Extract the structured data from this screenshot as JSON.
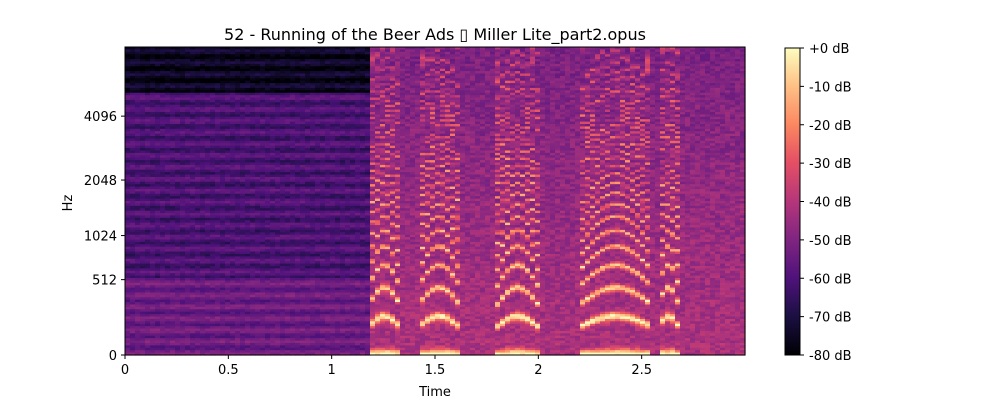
{
  "chart_data": {
    "type": "heatmap",
    "title": "52 - Running of the Beer Ads ▯ Miller Lite_part2.opus",
    "xlabel": "Time",
    "ylabel": "Hz",
    "x_range": [
      0,
      3.0
    ],
    "x_ticks": [
      {
        "value": 0,
        "label": "0"
      },
      {
        "value": 0.5,
        "label": "0.5"
      },
      {
        "value": 1,
        "label": "1"
      },
      {
        "value": 1.5,
        "label": "1.5"
      },
      {
        "value": 2,
        "label": "2"
      },
      {
        "value": 2.5,
        "label": "2.5"
      }
    ],
    "y_scale": "log2 (mel-like)",
    "y_ticks": [
      {
        "value": 0,
        "label": "0"
      },
      {
        "value": 512,
        "label": "512"
      },
      {
        "value": 1024,
        "label": "1024"
      },
      {
        "value": 2048,
        "label": "2048"
      },
      {
        "value": 4096,
        "label": "4096"
      }
    ],
    "colorbar": {
      "colormap": "magma",
      "range_db": [
        -80,
        0
      ],
      "ticks": [
        {
          "value": 0,
          "label": "+0 dB"
        },
        {
          "value": -10,
          "label": "-10 dB"
        },
        {
          "value": -20,
          "label": "-20 dB"
        },
        {
          "value": -30,
          "label": "-30 dB"
        },
        {
          "value": -40,
          "label": "-40 dB"
        },
        {
          "value": -50,
          "label": "-50 dB"
        },
        {
          "value": -60,
          "label": "-60 dB"
        },
        {
          "value": -70,
          "label": "-70 dB"
        },
        {
          "value": -80,
          "label": "-80 dB"
        }
      ]
    },
    "speech_onset_time": 1.18,
    "speech_segments": [
      {
        "start": 1.18,
        "end": 1.33
      },
      {
        "start": 1.42,
        "end": 1.62
      },
      {
        "start": 1.8,
        "end": 2.0
      },
      {
        "start": 2.2,
        "end": 2.55
      },
      {
        "start": 2.58,
        "end": 2.68
      }
    ]
  }
}
